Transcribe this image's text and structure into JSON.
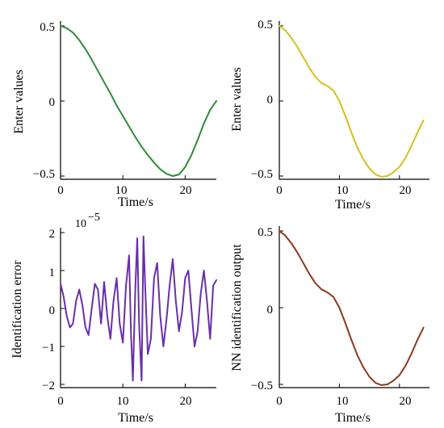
{
  "chart_data": [
    {
      "type": "line",
      "xlabel": "Time/s",
      "ylabel": "Enter values",
      "xlim": [
        0,
        25
      ],
      "ylim": [
        -0.5,
        0.5
      ],
      "xticks": [
        0,
        10,
        20
      ],
      "yticks": [
        -0.5,
        0,
        0.5
      ],
      "xtick_labels": [
        "0",
        "10",
        "20"
      ],
      "ytick_labels": [
        "−0.5",
        "0",
        "0.5"
      ],
      "y_exponent_label": "",
      "grid": false,
      "series": [
        {
          "color": "#2e8b3a",
          "x": [
            0,
            1,
            2,
            3,
            4,
            5,
            6,
            7,
            8,
            9,
            10,
            11,
            12,
            13,
            14,
            15,
            16,
            17,
            18,
            19,
            20,
            21,
            22,
            23,
            24,
            25
          ],
          "y": [
            0.5,
            0.485,
            0.455,
            0.405,
            0.345,
            0.275,
            0.2,
            0.125,
            0.05,
            -0.03,
            -0.1,
            -0.17,
            -0.24,
            -0.305,
            -0.36,
            -0.41,
            -0.455,
            -0.485,
            -0.5,
            -0.49,
            -0.44,
            -0.36,
            -0.26,
            -0.15,
            -0.06,
            0.0
          ]
        }
      ]
    },
    {
      "type": "line",
      "xlabel": "Time/s",
      "ylabel": "Enter values",
      "xlim": [
        0,
        25
      ],
      "ylim": [
        -0.5,
        0.5
      ],
      "xticks": [
        0,
        10,
        20
      ],
      "yticks": [
        -0.5,
        0,
        0.5
      ],
      "xtick_labels": [
        "0",
        "10",
        "20"
      ],
      "ytick_labels": [
        "−0.5",
        "0",
        "0.5"
      ],
      "y_exponent_label": "",
      "grid": false,
      "series": [
        {
          "color": "#d4c21a",
          "x": [
            0,
            1,
            2,
            3,
            4,
            5,
            6,
            7,
            8,
            9,
            10,
            11,
            12,
            13,
            14,
            15,
            16,
            17,
            18,
            19,
            20,
            21,
            22,
            23,
            24
          ],
          "y": [
            0.5,
            0.47,
            0.42,
            0.36,
            0.29,
            0.22,
            0.16,
            0.12,
            0.1,
            0.07,
            0.0,
            -0.1,
            -0.21,
            -0.31,
            -0.39,
            -0.45,
            -0.49,
            -0.505,
            -0.5,
            -0.475,
            -0.44,
            -0.38,
            -0.3,
            -0.21,
            -0.13
          ]
        }
      ]
    },
    {
      "type": "line",
      "xlabel": "Time/s",
      "ylabel": "Identification error",
      "xlim": [
        0,
        25
      ],
      "ylim": [
        -2,
        2
      ],
      "xticks": [
        0,
        10,
        20
      ],
      "yticks": [
        -2,
        -1,
        0,
        1,
        2
      ],
      "xtick_labels": [
        "0",
        "10",
        "20"
      ],
      "ytick_labels": [
        "−2",
        "−1",
        "0",
        "1",
        "2"
      ],
      "y_exponent_label": "10",
      "y_exponent_power": "−5",
      "grid": false,
      "series": [
        {
          "color": "#6a2fa8",
          "x": [
            0,
            0.5,
            1,
            1.5,
            2,
            2.5,
            3,
            3.5,
            4,
            4.5,
            5,
            5.5,
            6,
            6.5,
            7,
            7.5,
            8,
            8.5,
            9,
            9.5,
            10,
            10.5,
            11,
            11.3,
            11.6,
            12,
            12.3,
            12.6,
            13,
            13.3,
            13.6,
            14,
            14.5,
            15,
            15.5,
            16,
            16.5,
            17,
            17.5,
            18,
            18.5,
            19,
            19.5,
            20,
            20.5,
            21,
            21.5,
            22,
            22.5,
            23,
            23.5,
            24,
            24.5,
            25
          ],
          "y": [
            0.65,
            0.3,
            -0.2,
            -0.5,
            -0.4,
            0.2,
            0.5,
            0.1,
            -0.5,
            -0.7,
            0.0,
            0.65,
            0.5,
            -0.4,
            0.7,
            -0.2,
            -0.8,
            0.2,
            0.8,
            -0.4,
            -0.9,
            0.6,
            1.4,
            -0.6,
            -1.9,
            0.5,
            1.85,
            -0.4,
            -1.9,
            1.9,
            0.5,
            -1.2,
            -0.8,
            0.8,
            1.2,
            -0.2,
            -1.0,
            -0.3,
            0.6,
            1.3,
            0.2,
            -0.6,
            -0.1,
            0.8,
            1.0,
            0.0,
            -1.0,
            -0.6,
            0.4,
            1.0,
            0.2,
            -0.8,
            0.6,
            0.75
          ]
        }
      ]
    },
    {
      "type": "line",
      "xlabel": "Time/s",
      "ylabel": "NN identification output",
      "xlim": [
        0,
        25
      ],
      "ylim": [
        -0.5,
        0.5
      ],
      "xticks": [
        0,
        10,
        20
      ],
      "yticks": [
        -0.5,
        0,
        0.5
      ],
      "xtick_labels": [
        "0",
        "10",
        "20"
      ],
      "ytick_labels": [
        "−0.5",
        "0",
        "0.5"
      ],
      "y_exponent_label": "",
      "grid": false,
      "series": [
        {
          "color": "#8b3a1a",
          "x": [
            0,
            1,
            2,
            3,
            4,
            5,
            6,
            7,
            8,
            9,
            10,
            11,
            12,
            13,
            14,
            15,
            16,
            17,
            18,
            19,
            20,
            21,
            22,
            23,
            24
          ],
          "y": [
            0.5,
            0.47,
            0.42,
            0.36,
            0.29,
            0.22,
            0.16,
            0.12,
            0.1,
            0.07,
            0.0,
            -0.1,
            -0.21,
            -0.31,
            -0.39,
            -0.45,
            -0.49,
            -0.505,
            -0.5,
            -0.475,
            -0.44,
            -0.38,
            -0.3,
            -0.21,
            -0.13
          ]
        }
      ]
    }
  ]
}
